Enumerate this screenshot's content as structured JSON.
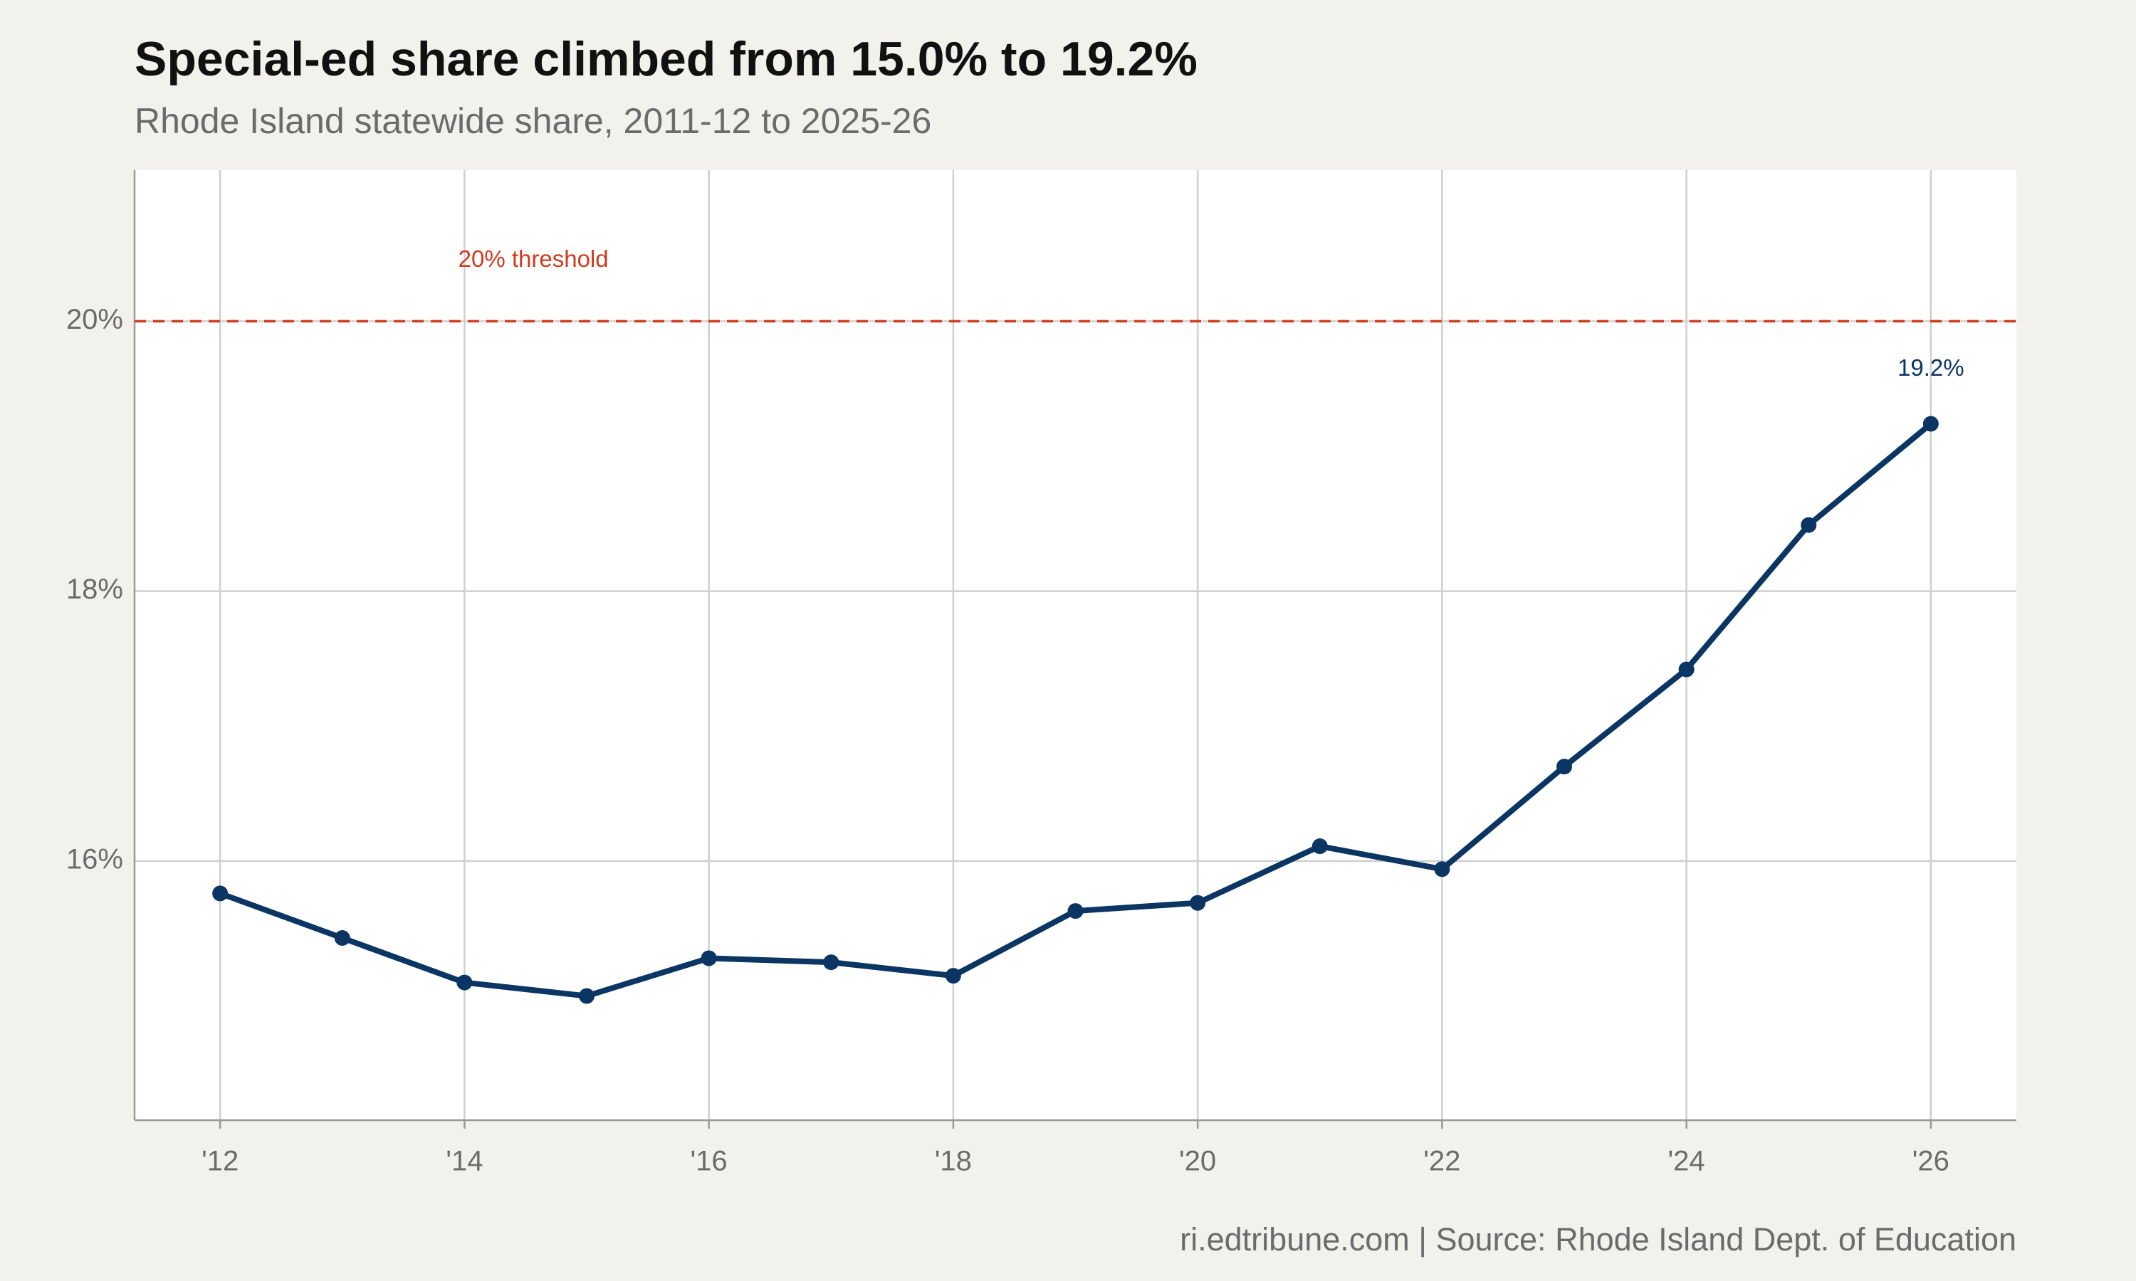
{
  "chart_data": {
    "type": "line",
    "title": "Special-ed share climbed from 15.0% to 19.2%",
    "subtitle": "Rhode Island statewide share, 2011-12 to 2025-26",
    "caption": "ri.edtribune.com | Source: Rhode Island Dept. of Education",
    "x": [
      2012,
      2013,
      2014,
      2015,
      2016,
      2017,
      2018,
      2019,
      2020,
      2021,
      2022,
      2023,
      2024,
      2025,
      2026
    ],
    "series": [
      {
        "color": "#0b3563",
        "values": [
          15.76,
          15.43,
          15.1,
          15.0,
          15.28,
          15.25,
          15.15,
          15.63,
          15.69,
          16.11,
          15.94,
          16.7,
          17.42,
          18.49,
          19.24
        ],
        "value_labels": [
          null,
          null,
          null,
          null,
          null,
          null,
          null,
          null,
          null,
          null,
          null,
          null,
          null,
          null,
          "19.2%"
        ]
      }
    ],
    "threshold": {
      "value": 20,
      "label": "20% threshold",
      "color": "#d13a1c"
    },
    "xlim": [
      2011.3,
      2026.7
    ],
    "xticks": [
      {
        "value": 2012,
        "label": "'12"
      },
      {
        "value": 2014,
        "label": "'14"
      },
      {
        "value": 2016,
        "label": "'16"
      },
      {
        "value": 2018,
        "label": "'18"
      },
      {
        "value": 2020,
        "label": "'20"
      },
      {
        "value": 2022,
        "label": "'22"
      },
      {
        "value": 2024,
        "label": "'24"
      },
      {
        "value": 2026,
        "label": "'26"
      }
    ],
    "ylim": [
      14.08,
      21.12
    ],
    "yticks": [
      {
        "value": 16,
        "label": "16%"
      },
      {
        "value": 18,
        "label": "18%"
      },
      {
        "value": 20,
        "label": "20%"
      }
    ],
    "grid": true
  }
}
